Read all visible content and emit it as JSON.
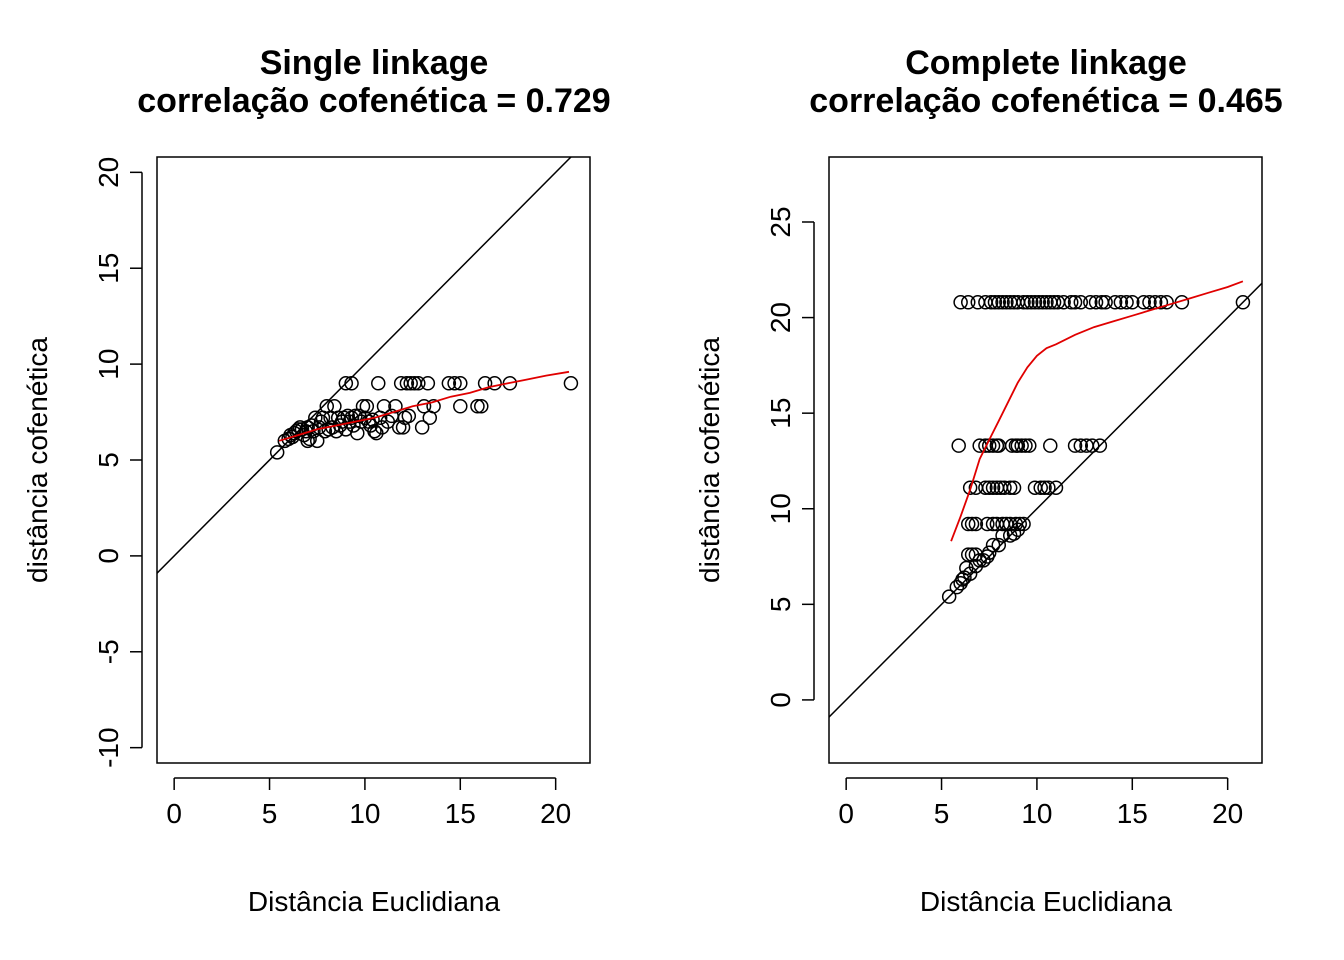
{
  "chart_data": [
    {
      "type": "scatter",
      "title": "Single linkage",
      "subtitle": "correlação cofenética = 0.729",
      "xlabel": "Distância Euclidiana",
      "ylabel": "distância cofenética",
      "xlim": [
        -0.9,
        21.8
      ],
      "ylim": [
        -10.8,
        20.8
      ],
      "xticks": [
        0,
        5,
        10,
        15,
        20
      ],
      "yticks": [
        -10,
        -5,
        0,
        5,
        10,
        15,
        20
      ],
      "grid": false,
      "reference_line": {
        "slope": 1,
        "intercept": 0,
        "color": "#000000"
      },
      "points": [
        [
          5.4,
          5.4
        ],
        [
          5.8,
          6.0
        ],
        [
          6.0,
          6.1
        ],
        [
          6.1,
          6.3
        ],
        [
          6.2,
          6.2
        ],
        [
          6.3,
          6.4
        ],
        [
          6.4,
          6.5
        ],
        [
          6.5,
          6.6
        ],
        [
          6.6,
          6.7
        ],
        [
          6.7,
          6.6
        ],
        [
          6.8,
          6.3
        ],
        [
          6.9,
          6.5
        ],
        [
          7.0,
          6.0
        ],
        [
          7.0,
          6.7
        ],
        [
          7.1,
          6.1
        ],
        [
          7.2,
          6.8
        ],
        [
          7.3,
          6.5
        ],
        [
          7.4,
          7.2
        ],
        [
          7.5,
          6.0
        ],
        [
          7.6,
          6.7
        ],
        [
          7.7,
          7.0
        ],
        [
          7.8,
          7.2
        ],
        [
          7.9,
          6.5
        ],
        [
          8.0,
          7.8
        ],
        [
          8.1,
          6.6
        ],
        [
          8.2,
          7.2
        ],
        [
          8.3,
          6.7
        ],
        [
          8.4,
          7.8
        ],
        [
          8.5,
          6.5
        ],
        [
          8.6,
          7.2
        ],
        [
          8.7,
          6.8
        ],
        [
          8.8,
          7.0
        ],
        [
          8.9,
          7.2
        ],
        [
          9.0,
          9.0
        ],
        [
          9.0,
          6.6
        ],
        [
          9.1,
          7.3
        ],
        [
          9.2,
          7.0
        ],
        [
          9.3,
          9.0
        ],
        [
          9.3,
          7.2
        ],
        [
          9.4,
          6.8
        ],
        [
          9.5,
          7.3
        ],
        [
          9.6,
          6.4
        ],
        [
          9.7,
          7.3
        ],
        [
          9.8,
          7.0
        ],
        [
          9.9,
          7.8
        ],
        [
          10.0,
          7.2
        ],
        [
          10.1,
          7.8
        ],
        [
          10.2,
          7.0
        ],
        [
          10.3,
          6.8
        ],
        [
          10.4,
          7.1
        ],
        [
          10.5,
          6.5
        ],
        [
          10.6,
          6.4
        ],
        [
          10.7,
          9.0
        ],
        [
          10.8,
          7.2
        ],
        [
          10.9,
          6.7
        ],
        [
          11.0,
          7.8
        ],
        [
          11.2,
          7.0
        ],
        [
          11.4,
          7.3
        ],
        [
          11.6,
          7.8
        ],
        [
          11.8,
          6.7
        ],
        [
          11.9,
          9.0
        ],
        [
          12.0,
          6.7
        ],
        [
          12.1,
          7.2
        ],
        [
          12.2,
          9.0
        ],
        [
          12.3,
          7.3
        ],
        [
          12.4,
          9.0
        ],
        [
          12.6,
          9.0
        ],
        [
          12.8,
          9.0
        ],
        [
          13.0,
          6.7
        ],
        [
          13.1,
          7.8
        ],
        [
          13.3,
          9.0
        ],
        [
          13.4,
          7.2
        ],
        [
          13.6,
          7.8
        ],
        [
          14.4,
          9.0
        ],
        [
          14.7,
          9.0
        ],
        [
          15.0,
          9.0
        ],
        [
          15.0,
          7.8
        ],
        [
          15.9,
          7.8
        ],
        [
          16.1,
          7.8
        ],
        [
          16.3,
          9.0
        ],
        [
          16.8,
          9.0
        ],
        [
          17.6,
          9.0
        ],
        [
          20.8,
          9.0
        ]
      ],
      "smooth": {
        "color": "#e00000",
        "points": [
          [
            5.5,
            6.0
          ],
          [
            6.5,
            6.3
          ],
          [
            7.5,
            6.6
          ],
          [
            8.5,
            6.8
          ],
          [
            9.5,
            7.0
          ],
          [
            10.5,
            7.2
          ],
          [
            11.5,
            7.5
          ],
          [
            12.5,
            7.8
          ],
          [
            13.5,
            8.0
          ],
          [
            14.5,
            8.3
          ],
          [
            15.5,
            8.5
          ],
          [
            16.5,
            8.8
          ],
          [
            17.5,
            9.0
          ],
          [
            18.5,
            9.2
          ],
          [
            19.5,
            9.4
          ],
          [
            20.7,
            9.6
          ]
        ]
      }
    },
    {
      "type": "scatter",
      "title": "Complete linkage",
      "subtitle": "correlação cofenética = 0.465",
      "xlabel": "Distância Euclidiana",
      "ylabel": "distância cofenética",
      "xlim": [
        -0.9,
        21.8
      ],
      "ylim": [
        -3.3,
        28.4
      ],
      "xticks": [
        0,
        5,
        10,
        15,
        20
      ],
      "yticks": [
        0,
        5,
        10,
        15,
        20,
        25
      ],
      "grid": false,
      "reference_line": {
        "slope": 1,
        "intercept": 0,
        "color": "#000000"
      },
      "points": [
        [
          5.4,
          5.4
        ],
        [
          5.8,
          5.9
        ],
        [
          6.0,
          6.1
        ],
        [
          6.1,
          6.3
        ],
        [
          6.2,
          6.4
        ],
        [
          6.3,
          6.9
        ],
        [
          6.5,
          6.6
        ],
        [
          6.8,
          7.0
        ],
        [
          7.0,
          7.3
        ],
        [
          7.2,
          7.3
        ],
        [
          7.4,
          7.5
        ],
        [
          7.5,
          7.7
        ],
        [
          7.7,
          8.1
        ],
        [
          8.0,
          8.1
        ],
        [
          8.2,
          8.6
        ],
        [
          8.6,
          8.6
        ],
        [
          8.8,
          8.7
        ],
        [
          9.0,
          8.9
        ],
        [
          9.1,
          9.2
        ],
        [
          9.3,
          9.2
        ],
        [
          6.4,
          7.6
        ],
        [
          6.6,
          7.6
        ],
        [
          6.8,
          7.6
        ],
        [
          6.4,
          9.2
        ],
        [
          6.6,
          9.2
        ],
        [
          6.8,
          9.2
        ],
        [
          7.4,
          9.2
        ],
        [
          7.7,
          9.2
        ],
        [
          7.9,
          9.2
        ],
        [
          8.2,
          9.2
        ],
        [
          8.4,
          9.2
        ],
        [
          8.6,
          9.2
        ],
        [
          8.9,
          9.2
        ],
        [
          6.5,
          11.1
        ],
        [
          6.8,
          11.1
        ],
        [
          7.3,
          11.1
        ],
        [
          7.5,
          11.1
        ],
        [
          7.7,
          11.1
        ],
        [
          7.9,
          11.1
        ],
        [
          8.1,
          11.1
        ],
        [
          8.3,
          11.1
        ],
        [
          8.6,
          11.1
        ],
        [
          8.8,
          11.1
        ],
        [
          9.9,
          11.1
        ],
        [
          10.2,
          11.1
        ],
        [
          10.4,
          11.1
        ],
        [
          10.6,
          11.1
        ],
        [
          11.0,
          11.1
        ],
        [
          5.9,
          13.3
        ],
        [
          7.0,
          13.3
        ],
        [
          7.3,
          13.3
        ],
        [
          7.5,
          13.3
        ],
        [
          7.7,
          13.3
        ],
        [
          7.9,
          13.3
        ],
        [
          8.0,
          13.3
        ],
        [
          8.7,
          13.3
        ],
        [
          8.9,
          13.3
        ],
        [
          9.0,
          13.3
        ],
        [
          9.2,
          13.3
        ],
        [
          9.4,
          13.3
        ],
        [
          9.6,
          13.3
        ],
        [
          10.7,
          13.3
        ],
        [
          12.0,
          13.3
        ],
        [
          12.3,
          13.3
        ],
        [
          12.6,
          13.3
        ],
        [
          12.9,
          13.3
        ],
        [
          13.3,
          13.3
        ],
        [
          6.0,
          20.8
        ],
        [
          6.4,
          20.8
        ],
        [
          6.9,
          20.8
        ],
        [
          7.3,
          20.8
        ],
        [
          7.6,
          20.8
        ],
        [
          7.8,
          20.8
        ],
        [
          8.0,
          20.8
        ],
        [
          8.2,
          20.8
        ],
        [
          8.4,
          20.8
        ],
        [
          8.6,
          20.8
        ],
        [
          8.8,
          20.8
        ],
        [
          9.0,
          20.8
        ],
        [
          9.3,
          20.8
        ],
        [
          9.5,
          20.8
        ],
        [
          9.7,
          20.8
        ],
        [
          9.9,
          20.8
        ],
        [
          10.1,
          20.8
        ],
        [
          10.3,
          20.8
        ],
        [
          10.5,
          20.8
        ],
        [
          10.7,
          20.8
        ],
        [
          10.9,
          20.8
        ],
        [
          11.1,
          20.8
        ],
        [
          11.4,
          20.8
        ],
        [
          11.8,
          20.8
        ],
        [
          12.0,
          20.8
        ],
        [
          12.3,
          20.8
        ],
        [
          12.8,
          20.8
        ],
        [
          13.1,
          20.8
        ],
        [
          13.4,
          20.8
        ],
        [
          13.6,
          20.8
        ],
        [
          14.1,
          20.8
        ],
        [
          14.4,
          20.8
        ],
        [
          14.7,
          20.8
        ],
        [
          15.0,
          20.8
        ],
        [
          15.6,
          20.8
        ],
        [
          15.9,
          20.8
        ],
        [
          16.2,
          20.8
        ],
        [
          16.5,
          20.8
        ],
        [
          16.8,
          20.8
        ],
        [
          17.6,
          20.8
        ],
        [
          20.8,
          20.8
        ]
      ],
      "smooth": {
        "color": "#e00000",
        "points": [
          [
            5.5,
            8.3
          ],
          [
            6.0,
            9.6
          ],
          [
            6.5,
            11.0
          ],
          [
            7.0,
            12.6
          ],
          [
            7.5,
            13.6
          ],
          [
            8.0,
            14.6
          ],
          [
            8.5,
            15.6
          ],
          [
            9.0,
            16.6
          ],
          [
            9.5,
            17.4
          ],
          [
            10.0,
            18.0
          ],
          [
            10.5,
            18.4
          ],
          [
            11.0,
            18.6
          ],
          [
            12.0,
            19.1
          ],
          [
            13.0,
            19.5
          ],
          [
            14.0,
            19.8
          ],
          [
            15.0,
            20.1
          ],
          [
            16.0,
            20.4
          ],
          [
            17.0,
            20.7
          ],
          [
            18.0,
            21.0
          ],
          [
            19.0,
            21.3
          ],
          [
            20.0,
            21.6
          ],
          [
            20.8,
            21.9
          ]
        ]
      }
    }
  ]
}
